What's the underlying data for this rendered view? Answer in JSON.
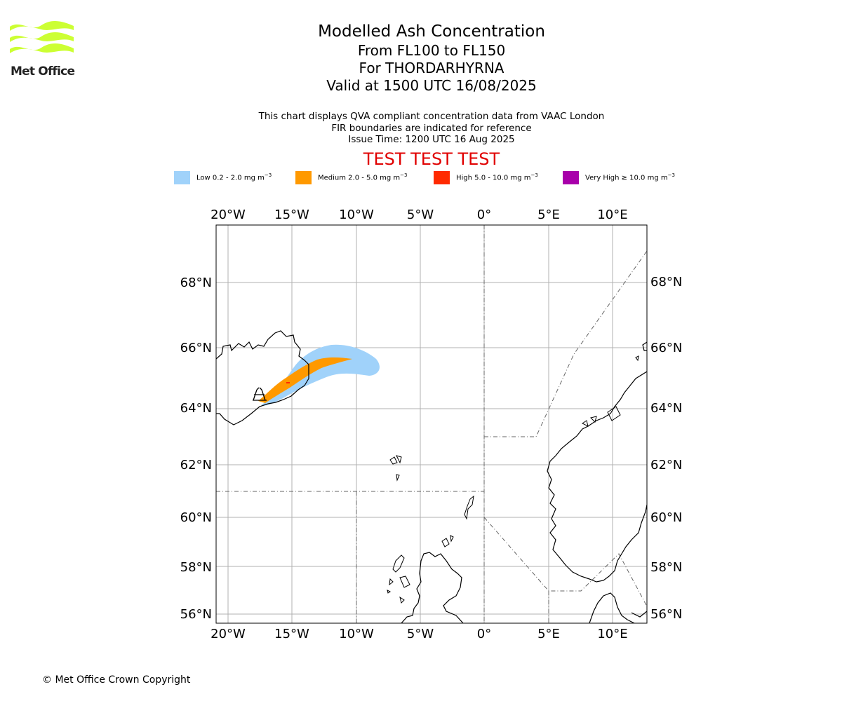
{
  "logo": {
    "text": "Met Office",
    "color": "#ccff33"
  },
  "title": {
    "line1": "Modelled Ash Concentration",
    "line2": "From FL100 to FL150",
    "line3": "For THORDARHYRNA",
    "line4": "Valid at 1500 UTC 16/08/2025"
  },
  "subtitle": {
    "line1": "This chart displays QVA compliant concentration data from VAAC London",
    "line2": "FIR boundaries are indicated for reference",
    "line3": "Issue Time: 1200 UTC 16 Aug 2025"
  },
  "test_banner": "TEST TEST TEST",
  "legend": [
    {
      "label": "Low 0.2 - 2.0 mg m",
      "color": "#a0d2fa"
    },
    {
      "label": "Medium 2.0 - 5.0 mg m",
      "color": "#ff9900"
    },
    {
      "label": "High 5.0 - 10.0 mg m",
      "color": "#ff2a00"
    },
    {
      "label": "Very High ≥ 10.0 mg m",
      "color": "#a800aa"
    }
  ],
  "legend_unit_exponent": "−3",
  "map": {
    "lon_ticks": [
      "20°W",
      "15°W",
      "10°W",
      "5°W",
      "0°",
      "5°E",
      "10°E"
    ],
    "lat_ticks": [
      "68°N",
      "66°N",
      "64°N",
      "62°N",
      "60°N",
      "58°N",
      "56°N"
    ],
    "extent": {
      "lon": [
        -21,
        12.7
      ],
      "lat": [
        55.6,
        69.9
      ]
    }
  },
  "copyright": "© Met Office Crown Copyright"
}
